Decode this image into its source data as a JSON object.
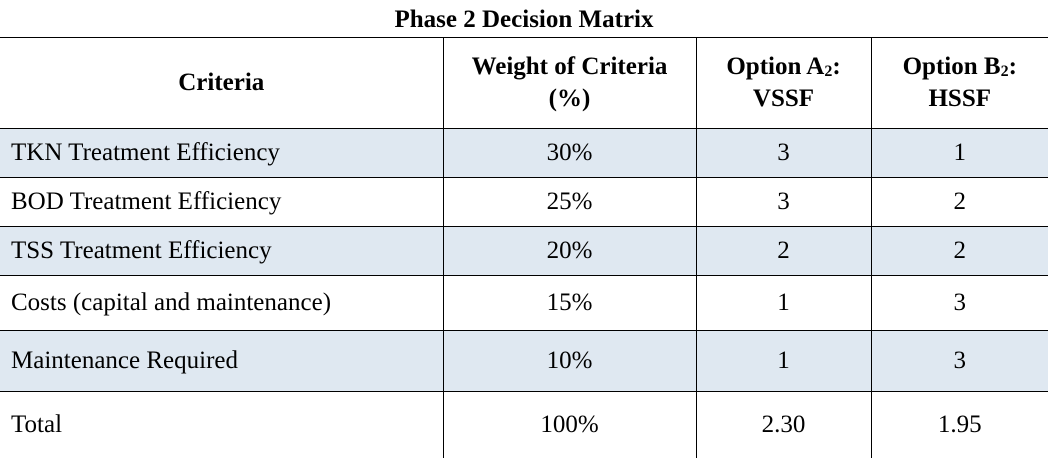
{
  "title": "Phase 2 Decision Matrix",
  "columns": {
    "criteria": "Criteria",
    "weight_line1": "Weight of Criteria",
    "weight_line2": "(%)",
    "optA_prefix": "Option A",
    "optA_sub": "2",
    "optA_suffix": ":",
    "optA_line2": "VSSF",
    "optB_prefix": "Option B",
    "optB_sub": "2",
    "optB_suffix": ":",
    "optB_line2": "HSSF"
  },
  "rows": [
    {
      "criteria": "TKN Treatment Efficiency",
      "weight": "30%",
      "a": "3",
      "b": "1"
    },
    {
      "criteria": "BOD Treatment Efficiency",
      "weight": "25%",
      "a": "3",
      "b": "2"
    },
    {
      "criteria": "TSS Treatment Efficiency",
      "weight": "20%",
      "a": "2",
      "b": "2"
    },
    {
      "criteria": "Costs (capital and maintenance)",
      "weight": "15%",
      "a": "1",
      "b": "3"
    },
    {
      "criteria": "Maintenance Required",
      "weight": "10%",
      "a": "1",
      "b": "3"
    },
    {
      "criteria": "Total",
      "weight": "100%",
      "a": "2.30",
      "b": "1.95"
    }
  ],
  "colors": {
    "row_shade": "#dfe8f1",
    "border": "#000000"
  }
}
